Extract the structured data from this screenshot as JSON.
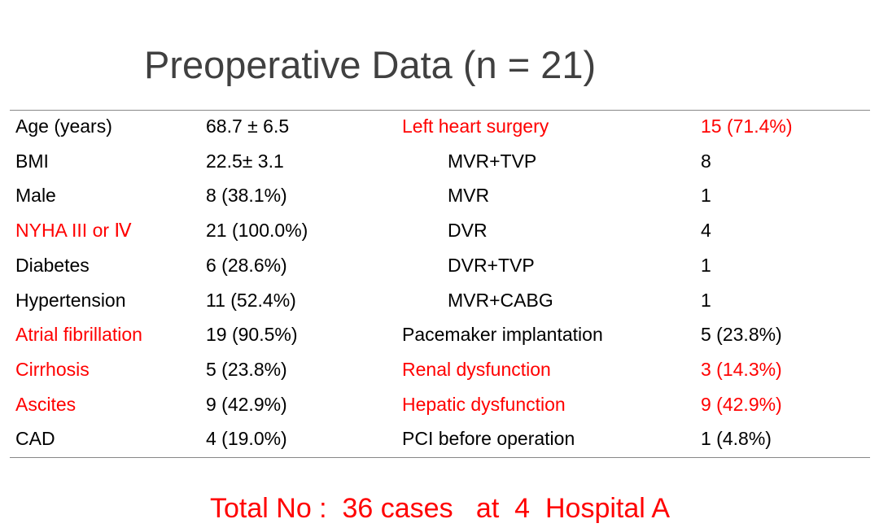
{
  "title": "Preoperative Data (n = 21)",
  "colors": {
    "highlight": "#ff0000",
    "normal": "#000000",
    "title": "#404040"
  },
  "left_rows": [
    {
      "label": "Age (years)",
      "value": "68.7 ± 6.5",
      "highlight": false
    },
    {
      "label": "BMI",
      "value": "22.5± 3.1",
      "highlight": false
    },
    {
      "label": "Male",
      "value": "8 (38.1%)",
      "highlight": false
    },
    {
      "label": "NYHA III or Ⅳ",
      "value": "21 (100.0%)",
      "highlight": true
    },
    {
      "label": "Diabetes",
      "value": "6 (28.6%)",
      "highlight": false
    },
    {
      "label": "Hypertension",
      "value": "11 (52.4%)",
      "highlight": false
    },
    {
      "label": "Atrial fibrillation",
      "value": "19 (90.5%)",
      "highlight": true
    },
    {
      "label": "Cirrhosis",
      "value": "5 (23.8%)",
      "highlight": true
    },
    {
      "label": "Ascites",
      "value": "9 (42.9%)",
      "highlight": true
    },
    {
      "label": "CAD",
      "value": "4 (19.0%)",
      "highlight": false
    }
  ],
  "right_rows": [
    {
      "label": "Left heart surgery",
      "value": "15 (71.4%)",
      "highlight": true,
      "indent": false
    },
    {
      "label": "MVR+TVP",
      "value": "8",
      "highlight": false,
      "indent": true
    },
    {
      "label": "MVR",
      "value": "1",
      "highlight": false,
      "indent": true
    },
    {
      "label": "DVR",
      "value": "4",
      "highlight": false,
      "indent": true
    },
    {
      "label": "DVR+TVP",
      "value": "1",
      "highlight": false,
      "indent": true
    },
    {
      "label": "MVR+CABG",
      "value": "1",
      "highlight": false,
      "indent": true
    },
    {
      "label": "Pacemaker implantation",
      "value": "5 (23.8%)",
      "highlight": false,
      "indent": false
    },
    {
      "label": "Renal dysfunction",
      "value": "3 (14.3%)",
      "highlight": true,
      "indent": false
    },
    {
      "label": "Hepatic dysfunction",
      "value": "9 (42.9%)",
      "highlight": true,
      "indent": false
    },
    {
      "label": "PCI before operation",
      "value": "1 (4.8%)",
      "highlight": false,
      "indent": false
    }
  ],
  "footer": "Total No :  36 cases   at  4  Hospital A"
}
